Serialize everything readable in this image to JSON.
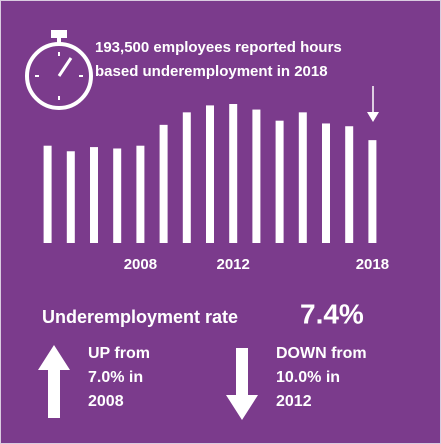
{
  "chart_data": {
    "type": "bar",
    "annotation": [
      "193,500 employees reported hours",
      "based underemployment in 2018"
    ],
    "categories": [
      null,
      null,
      null,
      null,
      "2008",
      null,
      null,
      null,
      "2012",
      null,
      null,
      null,
      null,
      null,
      "2018"
    ],
    "values": [
      7.0,
      6.6,
      6.9,
      6.8,
      7.0,
      8.5,
      9.4,
      9.9,
      10.0,
      9.6,
      8.8,
      9.4,
      8.6,
      8.4,
      7.4
    ],
    "color": "#ffffff",
    "ylim": [
      0,
      10
    ],
    "rate_label": "Underemployment rate",
    "rate_value": "7.4%",
    "up_text": [
      "UP from",
      "7.0% in",
      "2008"
    ],
    "down_text": [
      "DOWN from",
      "10.0% in",
      "2012"
    ]
  }
}
